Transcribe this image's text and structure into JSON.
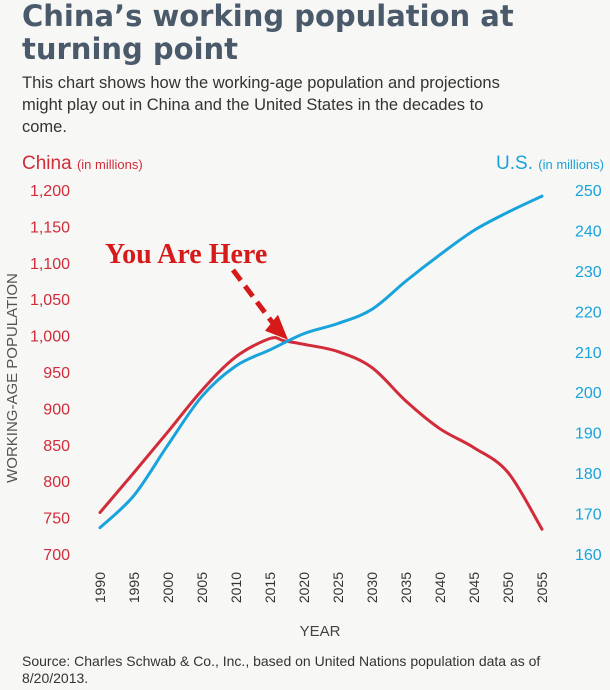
{
  "title": "China’s working population at turning point",
  "subtitle": "This chart shows how the working-age population and projections might play out in China and the United States in the decades to come.",
  "source": "Source: Charles Schwab & Co., Inc., based on United Nations population data as of 8/20/2013.",
  "colors": {
    "china": "#d22b3a",
    "us": "#18a3dc",
    "annotation": "#d61a1a",
    "text": "#333333"
  },
  "chart_data": {
    "type": "line",
    "xlabel": "YEAR",
    "ylabel": "WORKING-AGE POPULATION",
    "x_ticks": [
      1990,
      1995,
      2000,
      2005,
      2010,
      2015,
      2020,
      2025,
      2030,
      2035,
      2040,
      2045,
      2050,
      2055
    ],
    "xlim": [
      1990,
      2055
    ],
    "left_axis": {
      "label": "China",
      "unit": "(in millions)",
      "ylim": [
        700,
        1200
      ],
      "ticks": [
        "700",
        "750",
        "800",
        "850",
        "900",
        "950",
        "1,000",
        "1,050",
        "1,100",
        "1,150",
        "1,200"
      ],
      "tick_values": [
        700,
        750,
        800,
        850,
        900,
        950,
        1000,
        1050,
        1100,
        1150,
        1200
      ]
    },
    "right_axis": {
      "label": "U.S.",
      "unit": "(in millions)",
      "ylim": [
        160,
        250
      ],
      "ticks": [
        "160",
        "170",
        "180",
        "190",
        "200",
        "210",
        "220",
        "230",
        "240",
        "250"
      ],
      "tick_values": [
        160,
        170,
        180,
        190,
        200,
        210,
        220,
        230,
        240,
        250
      ]
    },
    "series": [
      {
        "name": "China",
        "axis": "left",
        "x": [
          1990,
          1995,
          2000,
          2005,
          2010,
          2015,
          2017,
          2020,
          2025,
          2030,
          2035,
          2040,
          2045,
          2050,
          2055
        ],
        "y": [
          757,
          812,
          868,
          925,
          971,
          996,
          993,
          988,
          978,
          956,
          910,
          872,
          846,
          812,
          734
        ]
      },
      {
        "name": "U.S.",
        "axis": "right",
        "x": [
          1990,
          1995,
          2000,
          2005,
          2010,
          2015,
          2020,
          2025,
          2030,
          2035,
          2040,
          2045,
          2050,
          2055
        ],
        "y": [
          166.5,
          174.5,
          187,
          199,
          206.5,
          210.5,
          214.5,
          217,
          220.5,
          227.5,
          234,
          240,
          244.5,
          248.5
        ]
      }
    ],
    "annotation": {
      "text": "You Are Here",
      "x": 2017.5,
      "y": 993
    }
  }
}
